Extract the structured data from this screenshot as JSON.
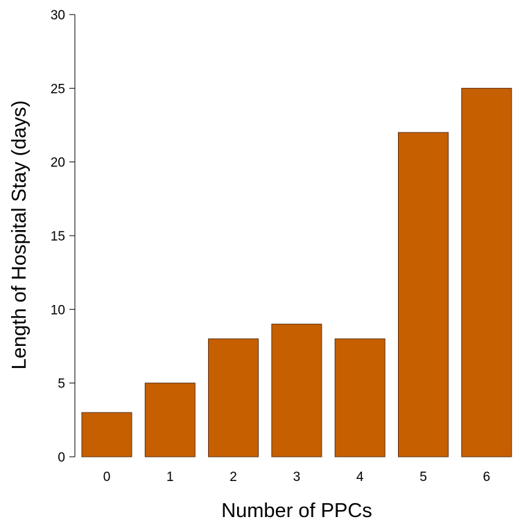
{
  "chart_data": {
    "type": "bar",
    "categories": [
      "0",
      "1",
      "2",
      "3",
      "4",
      "5",
      "6"
    ],
    "values": [
      3,
      5,
      8,
      9,
      8,
      22,
      25
    ],
    "title": "",
    "xlabel": "Number of PPCs",
    "ylabel": "Length of Hospital Stay (days)",
    "ylim": [
      0,
      30
    ],
    "yticks": [
      "0",
      "5",
      "10",
      "15",
      "20",
      "25",
      "30"
    ],
    "grid": false,
    "bar_color": "#c65f00"
  }
}
